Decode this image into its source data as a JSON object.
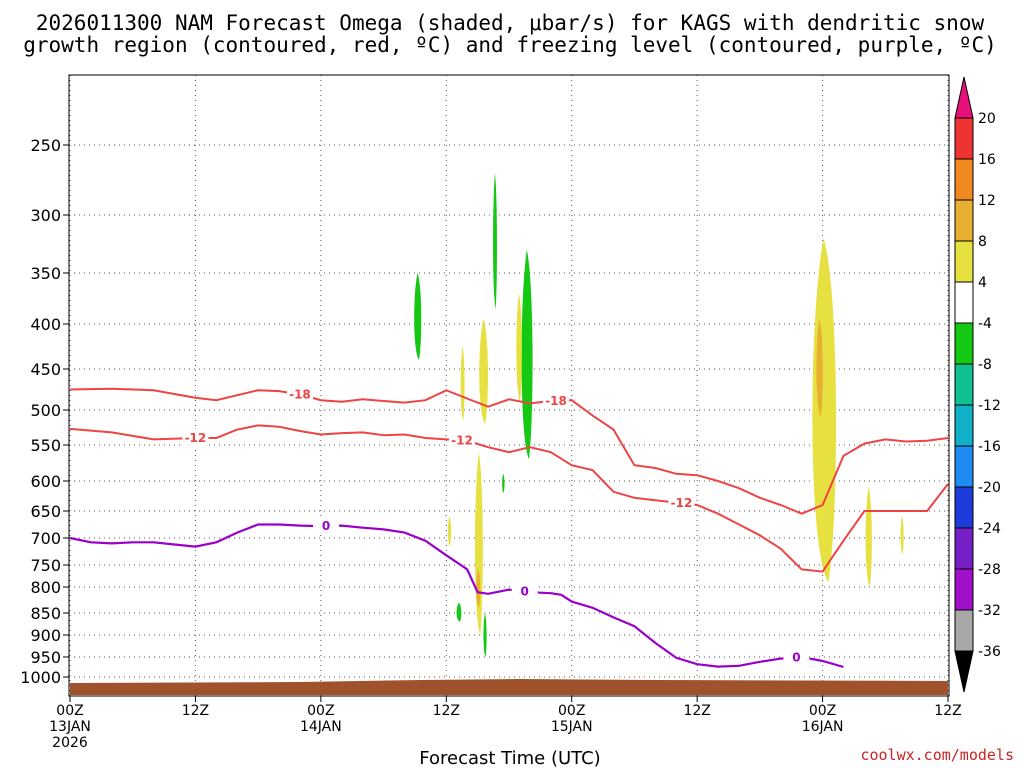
{
  "title_line1": "2026011300 NAM Forecast Omega (shaded, μbar/s) for KAGS with dendritic snow",
  "title_line2": "growth region (contoured, red, ºC) and freezing level (contoured, purple, ºC)",
  "credit": "coolwx.com/models",
  "colors": {
    "dgz": "#ee4444",
    "freezing": "#9900cc",
    "ground": "#a0522d"
  },
  "chart_data": {
    "type": "time-height-section",
    "xlabel": "Forecast Time (UTC)",
    "ylabel": "",
    "xlim": [
      0,
      84
    ],
    "ylim": [
      1050,
      200
    ],
    "x_ticks": [
      {
        "hours": 0,
        "line1": "00Z",
        "line2": "13JAN",
        "line3": "2026"
      },
      {
        "hours": 12,
        "line1": "12Z",
        "line2": "",
        "line3": ""
      },
      {
        "hours": 24,
        "line1": "00Z",
        "line2": "14JAN",
        "line3": ""
      },
      {
        "hours": 36,
        "line1": "12Z",
        "line2": "",
        "line3": ""
      },
      {
        "hours": 48,
        "line1": "00Z",
        "line2": "15JAN",
        "line3": ""
      },
      {
        "hours": 60,
        "line1": "12Z",
        "line2": "",
        "line3": ""
      },
      {
        "hours": 72,
        "line1": "00Z",
        "line2": "16JAN",
        "line3": ""
      },
      {
        "hours": 84,
        "line1": "12Z",
        "line2": "",
        "line3": ""
      }
    ],
    "pressure_levels": [
      "250",
      "300",
      "350",
      "400",
      "450",
      "500",
      "550",
      "600",
      "650",
      "700",
      "750",
      "800",
      "850",
      "900",
      "950",
      "1000"
    ],
    "colorbar": {
      "labels": [
        "20",
        "16",
        "12",
        "8",
        "4",
        "-4",
        "-8",
        "-12",
        "-16",
        "-20",
        "-24",
        "-28",
        "-32",
        "-36"
      ],
      "colors": [
        "#e8107a",
        "#ee3333",
        "#f08a20",
        "#e8b030",
        "#e6e040",
        "#ffffff",
        "#14c814",
        "#10c090",
        "#10b0c8",
        "#1e8cf0",
        "#1e3cdc",
        "#7820c8",
        "#a010c8",
        "#a8a8a8",
        "#000000"
      ]
    },
    "series": [
      {
        "name": "-18",
        "label": "-18",
        "color": "#ee4444",
        "x": [
          0,
          4,
          8,
          12,
          14,
          16,
          18,
          20,
          22,
          24,
          26,
          28,
          30,
          32,
          34,
          36,
          38,
          40,
          42,
          44,
          46,
          48,
          50,
          52,
          54,
          56,
          58,
          60,
          62,
          64,
          66,
          68,
          70,
          72,
          74,
          76,
          78,
          80,
          82,
          84
        ],
        "p": [
          475,
          474,
          476,
          485,
          488,
          482,
          476,
          477,
          481,
          488,
          490,
          487,
          489,
          491,
          488,
          476,
          486,
          496,
          487,
          492,
          489,
          488,
          508,
          528,
          578,
          582,
          590,
          592,
          600,
          612,
          628,
          640,
          655,
          640,
          565,
          548,
          542,
          545,
          544,
          540
        ],
        "label_x": [
          22,
          46.5
        ]
      },
      {
        "name": "-12",
        "label": "-12",
        "color": "#ee4444",
        "x": [
          0,
          4,
          8,
          12,
          14,
          16,
          18,
          20,
          22,
          24,
          26,
          28,
          30,
          32,
          34,
          36,
          38,
          40,
          42,
          44,
          46,
          48,
          50,
          52,
          54,
          56,
          58,
          60,
          62,
          64,
          66,
          68,
          70,
          72,
          74,
          76,
          78,
          80,
          82,
          84
        ],
        "p": [
          527,
          532,
          542,
          540,
          540,
          528,
          522,
          524,
          530,
          535,
          533,
          532,
          536,
          535,
          540,
          542,
          544,
          553,
          560,
          553,
          560,
          578,
          585,
          618,
          628,
          632,
          636,
          640,
          655,
          675,
          695,
          720,
          760,
          765,
          705,
          650,
          650,
          650,
          650,
          605
        ],
        "label_x": [
          12,
          37.5,
          58.5
        ]
      },
      {
        "name": "0",
        "label": "0",
        "color": "#9900cc",
        "x": [
          0,
          2,
          4,
          6,
          8,
          10,
          12,
          14,
          16,
          18,
          20,
          22,
          24,
          26,
          28,
          30,
          32,
          34,
          36,
          38,
          39,
          40,
          42,
          44,
          46,
          47,
          48,
          50,
          52,
          54,
          56,
          58,
          60,
          62,
          64,
          66,
          68,
          70,
          72,
          74
        ],
        "p": [
          700,
          708,
          710,
          708,
          708,
          712,
          716,
          708,
          690,
          675,
          675,
          677,
          678,
          677,
          681,
          684,
          690,
          705,
          732,
          760,
          810,
          813,
          805,
          810,
          812,
          815,
          828,
          840,
          860,
          880,
          918,
          952,
          968,
          974,
          972,
          962,
          954,
          950,
          960,
          975
        ],
        "label_x": [
          24.5,
          43.5,
          69.5
        ]
      }
    ],
    "shaded_regions": [
      {
        "category": "-4 to -8",
        "color": "#14c814",
        "h0": 32.8,
        "h1": 33.7,
        "ptop": 350,
        "pbot": 440
      },
      {
        "category": "-4 to -8",
        "color": "#14c814",
        "h0": 40.4,
        "h1": 40.9,
        "ptop": 270,
        "pbot": 385
      },
      {
        "category": "-4 to -8",
        "color": "#14c814",
        "h0": 43.0,
        "h1": 44.4,
        "ptop": 330,
        "pbot": 570
      },
      {
        "category": "-4 to -8",
        "color": "#14c814",
        "h0": 36.9,
        "h1": 37.5,
        "ptop": 830,
        "pbot": 870
      },
      {
        "category": "-4 to -8",
        "color": "#14c814",
        "h0": 39.5,
        "h1": 39.9,
        "ptop": 850,
        "pbot": 950
      },
      {
        "category": "-4 to -8",
        "color": "#14c814",
        "h0": 41.3,
        "h1": 41.6,
        "ptop": 590,
        "pbot": 620
      },
      {
        "category": "4 to 8",
        "color": "#e6e040",
        "h0": 37.3,
        "h1": 37.8,
        "ptop": 425,
        "pbot": 515
      },
      {
        "category": "4 to 8",
        "color": "#e6e040",
        "h0": 39.0,
        "h1": 40.1,
        "ptop": 395,
        "pbot": 520
      },
      {
        "category": "4 to 8",
        "color": "#e6e040",
        "h0": 42.6,
        "h1": 43.3,
        "ptop": 370,
        "pbot": 490
      },
      {
        "category": "4 to 8",
        "color": "#e6e040",
        "h0": 36.1,
        "h1": 36.5,
        "ptop": 660,
        "pbot": 715
      },
      {
        "category": "4 to 8",
        "color": "#e6e040",
        "h0": 38.6,
        "h1": 39.6,
        "ptop": 560,
        "pbot": 900
      },
      {
        "category": "4 to 8",
        "color": "#e6e040",
        "h0": 70.6,
        "h1": 73.6,
        "ptop": 320,
        "pbot": 790
      },
      {
        "category": "4 to 8",
        "color": "#e6e040",
        "h0": 76.0,
        "h1": 76.8,
        "ptop": 610,
        "pbot": 800
      },
      {
        "category": "4 to 8",
        "color": "#e6e040",
        "h0": 79.4,
        "h1": 79.8,
        "ptop": 660,
        "pbot": 730
      },
      {
        "category": "8 to 12",
        "color": "#e8b030",
        "h0": 71.3,
        "h1": 72.1,
        "ptop": 395,
        "pbot": 510
      },
      {
        "category": "8 to 12",
        "color": "#e8b030",
        "h0": 38.8,
        "h1": 39.3,
        "ptop": 760,
        "pbot": 840
      }
    ]
  }
}
